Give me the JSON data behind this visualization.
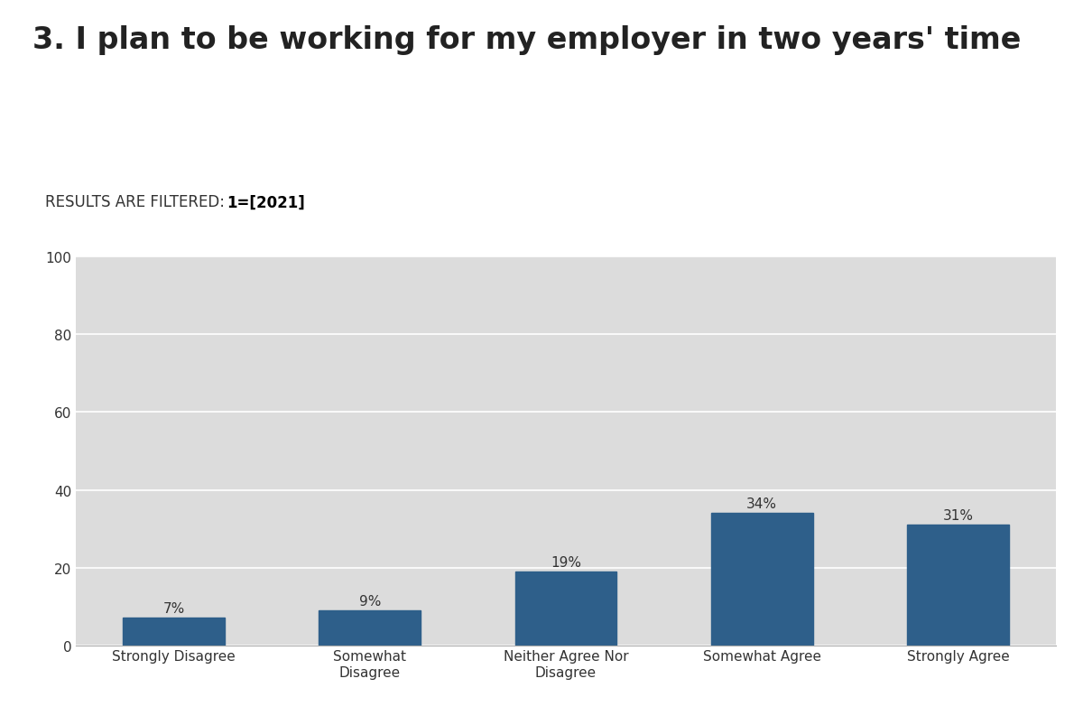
{
  "title": "3. I plan to be working for my employer in two years' time",
  "filter_text_normal": "RESULTS ARE FILTERED: ",
  "filter_text_bold": "1=[2021]",
  "categories": [
    "Strongly Disagree",
    "Somewhat\nDisagree",
    "Neither Agree Nor\nDisagree",
    "Somewhat Agree",
    "Strongly Agree"
  ],
  "values": [
    7,
    9,
    19,
    34,
    31
  ],
  "labels": [
    "7%",
    "9%",
    "19%",
    "34%",
    "31%"
  ],
  "bar_color": "#2E5F8A",
  "background_color": "#ffffff",
  "plot_bg_color": "#DCDCDC",
  "filter_bg_color": "#DCDCDC",
  "ylim": [
    0,
    100
  ],
  "yticks": [
    0,
    20,
    40,
    60,
    80,
    100
  ],
  "title_fontsize": 24,
  "title_fontweight": "bold",
  "label_fontsize": 11,
  "tick_fontsize": 11,
  "filter_fontsize": 12
}
